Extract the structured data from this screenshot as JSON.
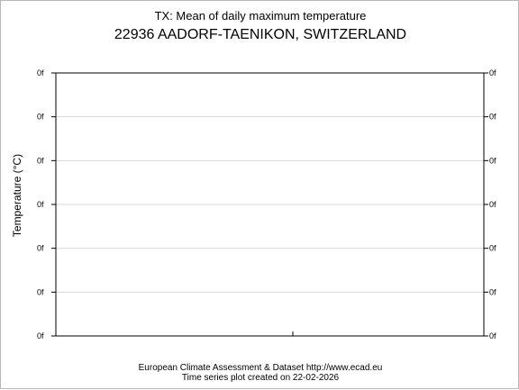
{
  "chart_data": {
    "type": "line",
    "title": "TX: Mean of daily maximum temperature",
    "subtitle": "22936 AADORF-TAENIKON, SWITZERLAND",
    "ylabel": "Temperature (°C)",
    "xlabel": "",
    "yticks_left": [
      "0f",
      "0f",
      "0f",
      "0f",
      "0f",
      "0f",
      "0f"
    ],
    "yticks_right": [
      "0f",
      "0f",
      "0f",
      "0f",
      "0f",
      "0f",
      "0f"
    ],
    "grid": true,
    "series": []
  },
  "footer": {
    "line1": "European Climate Assessment & Dataset  http://www.ecad.eu",
    "line2": "Time series plot created on 22-02-2026"
  },
  "colors": {
    "axis": "#000000",
    "grid": "#d8d8d8",
    "frame": "#b8b8b8"
  }
}
